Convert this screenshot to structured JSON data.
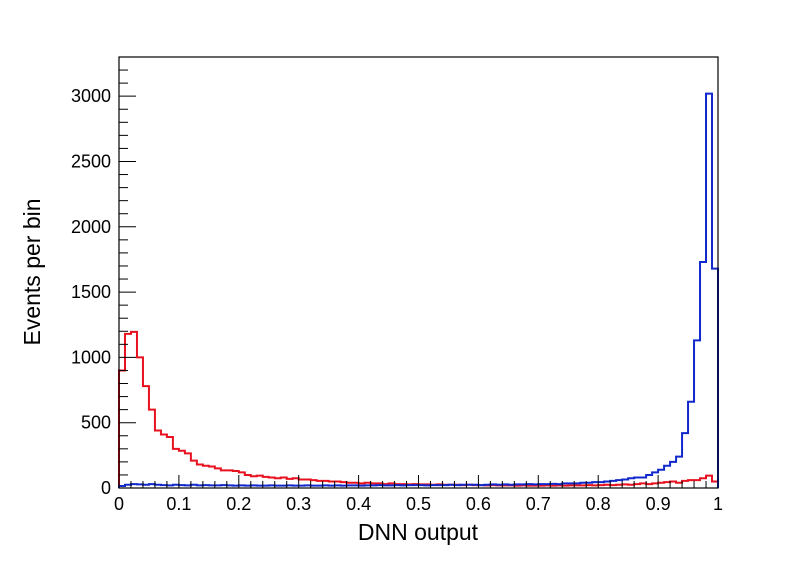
{
  "chart_data": {
    "type": "histogram",
    "title": "",
    "xlabel": "DNN output",
    "ylabel": "Events per bin",
    "xlim": [
      0,
      1
    ],
    "ylim": [
      0,
      3300
    ],
    "bin_width": 0.01,
    "grid": false,
    "legend": "none",
    "xticks": [
      0,
      0.1,
      0.2,
      0.3,
      0.4,
      0.5,
      0.6,
      0.7,
      0.8,
      0.9,
      1
    ],
    "xtick_labels": [
      "0",
      "0.1",
      "0.2",
      "0.3",
      "0.4",
      "0.5",
      "0.6",
      "0.7",
      "0.8",
      "0.9",
      "1"
    ],
    "yticks": [
      0,
      500,
      1000,
      1500,
      2000,
      2500,
      3000
    ],
    "ytick_labels": [
      "0",
      "500",
      "1000",
      "1500",
      "2000",
      "2500",
      "3000"
    ],
    "series": [
      {
        "color": "#e8111f",
        "values": [
          900,
          1180,
          1195,
          1000,
          780,
          600,
          440,
          410,
          390,
          300,
          285,
          265,
          210,
          180,
          170,
          165,
          150,
          135,
          135,
          130,
          120,
          100,
          90,
          95,
          85,
          80,
          75,
          80,
          70,
          75,
          65,
          65,
          60,
          55,
          55,
          50,
          50,
          45,
          40,
          40,
          35,
          40,
          35,
          35,
          30,
          35,
          30,
          30,
          28,
          30,
          28,
          28,
          25,
          28,
          25,
          25,
          25,
          22,
          25,
          22,
          22,
          20,
          22,
          20,
          20,
          20,
          18,
          20,
          18,
          18,
          18,
          20,
          18,
          20,
          18,
          20,
          20,
          20,
          22,
          20,
          22,
          25,
          22,
          25,
          28,
          25,
          30,
          35,
          30,
          35,
          40,
          45,
          50,
          40,
          55,
          60,
          60,
          75,
          95,
          50
        ]
      },
      {
        "color": "#1028cc",
        "values": [
          15,
          25,
          30,
          28,
          25,
          30,
          25,
          22,
          20,
          25,
          22,
          20,
          25,
          20,
          22,
          20,
          20,
          22,
          20,
          18,
          20,
          18,
          20,
          18,
          18,
          20,
          18,
          18,
          20,
          18,
          18,
          20,
          18,
          18,
          20,
          18,
          20,
          18,
          20,
          20,
          18,
          20,
          20,
          22,
          20,
          20,
          22,
          20,
          22,
          22,
          22,
          20,
          22,
          22,
          22,
          25,
          22,
          25,
          25,
          25,
          22,
          25,
          28,
          25,
          28,
          25,
          28,
          28,
          30,
          28,
          30,
          30,
          32,
          30,
          35,
          35,
          35,
          40,
          40,
          45,
          45,
          50,
          55,
          60,
          65,
          75,
          80,
          80,
          100,
          120,
          140,
          170,
          200,
          240,
          420,
          660,
          1130,
          1730,
          3020,
          1680
        ]
      }
    ]
  }
}
